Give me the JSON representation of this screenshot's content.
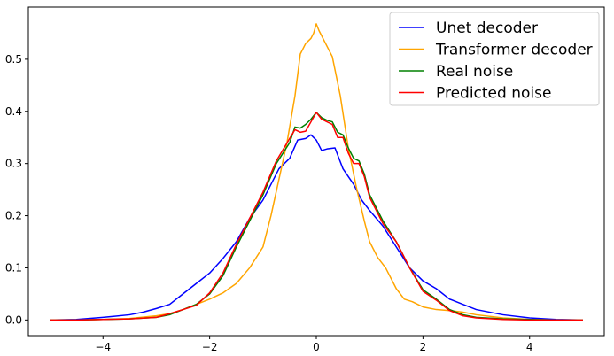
{
  "chart_data": {
    "type": "line",
    "xlim": [
      -5.4,
      5.4
    ],
    "ylim": [
      -0.03,
      0.6
    ],
    "xticks": [
      -4,
      -2,
      0,
      2,
      4
    ],
    "xtick_labels": [
      "−4",
      "−2",
      "0",
      "2",
      "4"
    ],
    "yticks": [
      0.0,
      0.1,
      0.2,
      0.3,
      0.4,
      0.5
    ],
    "ytick_labels": [
      "0.0",
      "0.1",
      "0.2",
      "0.3",
      "0.4",
      "0.5"
    ],
    "grid": false,
    "legend_position": "top-right",
    "series": [
      {
        "name": "Unet decoder",
        "color": "#0000ff",
        "x": [
          -5.0,
          -4.5,
          -4.0,
          -3.5,
          -3.25,
          -3.0,
          -2.75,
          -2.5,
          -2.25,
          -2.0,
          -1.75,
          -1.5,
          -1.25,
          -1.0,
          -0.85,
          -0.7,
          -0.5,
          -0.35,
          -0.2,
          -0.1,
          0.0,
          0.1,
          0.2,
          0.35,
          0.5,
          0.7,
          0.85,
          1.0,
          1.25,
          1.5,
          1.75,
          2.0,
          2.25,
          2.5,
          2.75,
          3.0,
          3.5,
          4.0,
          4.5,
          5.0
        ],
        "y": [
          0.0,
          0.001,
          0.005,
          0.01,
          0.015,
          0.022,
          0.03,
          0.05,
          0.07,
          0.09,
          0.118,
          0.15,
          0.195,
          0.23,
          0.26,
          0.29,
          0.31,
          0.345,
          0.348,
          0.355,
          0.345,
          0.325,
          0.328,
          0.33,
          0.29,
          0.26,
          0.23,
          0.21,
          0.18,
          0.14,
          0.1,
          0.075,
          0.06,
          0.04,
          0.03,
          0.02,
          0.01,
          0.004,
          0.001,
          0.0
        ]
      },
      {
        "name": "Transformer decoder",
        "color": "#ffa500",
        "x": [
          -5.0,
          -4.5,
          -4.0,
          -3.5,
          -3.0,
          -2.75,
          -2.5,
          -2.25,
          -2.0,
          -1.75,
          -1.5,
          -1.25,
          -1.0,
          -0.85,
          -0.7,
          -0.55,
          -0.4,
          -0.3,
          -0.2,
          -0.1,
          -0.05,
          0.0,
          0.05,
          0.1,
          0.2,
          0.3,
          0.45,
          0.6,
          0.75,
          0.9,
          1.0,
          1.15,
          1.3,
          1.5,
          1.65,
          1.8,
          2.0,
          2.25,
          2.5,
          2.75,
          3.0,
          3.5,
          4.0,
          4.5,
          5.0
        ],
        "y": [
          0.0,
          0.0,
          0.001,
          0.003,
          0.008,
          0.012,
          0.02,
          0.03,
          0.04,
          0.052,
          0.07,
          0.1,
          0.14,
          0.2,
          0.27,
          0.34,
          0.43,
          0.51,
          0.53,
          0.54,
          0.55,
          0.568,
          0.555,
          0.545,
          0.525,
          0.505,
          0.43,
          0.33,
          0.255,
          0.19,
          0.15,
          0.12,
          0.1,
          0.06,
          0.04,
          0.035,
          0.025,
          0.02,
          0.018,
          0.015,
          0.01,
          0.004,
          0.001,
          0.0,
          0.0
        ]
      },
      {
        "name": "Real noise",
        "color": "#008000",
        "x": [
          -5.0,
          -4.5,
          -4.0,
          -3.5,
          -3.0,
          -2.75,
          -2.5,
          -2.25,
          -2.0,
          -1.75,
          -1.5,
          -1.25,
          -1.0,
          -0.75,
          -0.5,
          -0.4,
          -0.3,
          -0.2,
          -0.1,
          0.0,
          0.1,
          0.2,
          0.3,
          0.4,
          0.5,
          0.6,
          0.7,
          0.8,
          0.9,
          1.0,
          1.25,
          1.5,
          1.75,
          2.0,
          2.25,
          2.5,
          2.75,
          3.0,
          3.5,
          4.0,
          4.5,
          5.0
        ],
        "y": [
          0.0,
          0.0,
          0.001,
          0.002,
          0.005,
          0.01,
          0.02,
          0.03,
          0.05,
          0.085,
          0.14,
          0.19,
          0.24,
          0.3,
          0.34,
          0.37,
          0.368,
          0.375,
          0.385,
          0.398,
          0.388,
          0.383,
          0.38,
          0.36,
          0.355,
          0.33,
          0.31,
          0.305,
          0.28,
          0.24,
          0.19,
          0.15,
          0.1,
          0.058,
          0.04,
          0.02,
          0.01,
          0.005,
          0.002,
          0.001,
          0.0,
          0.0
        ]
      },
      {
        "name": "Predicted noise",
        "color": "#ff0000",
        "x": [
          -5.0,
          -4.5,
          -4.0,
          -3.5,
          -3.0,
          -2.75,
          -2.5,
          -2.25,
          -2.0,
          -1.75,
          -1.5,
          -1.25,
          -1.0,
          -0.75,
          -0.5,
          -0.4,
          -0.3,
          -0.2,
          -0.1,
          0.0,
          0.1,
          0.2,
          0.3,
          0.4,
          0.5,
          0.6,
          0.7,
          0.8,
          0.9,
          1.0,
          1.25,
          1.5,
          1.75,
          2.0,
          2.25,
          2.5,
          2.75,
          3.0,
          3.5,
          4.0,
          4.5,
          5.0
        ],
        "y": [
          0.0,
          0.0,
          0.001,
          0.002,
          0.005,
          0.012,
          0.02,
          0.028,
          0.052,
          0.09,
          0.145,
          0.195,
          0.245,
          0.305,
          0.348,
          0.365,
          0.36,
          0.362,
          0.38,
          0.398,
          0.385,
          0.38,
          0.375,
          0.35,
          0.35,
          0.32,
          0.3,
          0.3,
          0.275,
          0.235,
          0.185,
          0.15,
          0.1,
          0.055,
          0.038,
          0.018,
          0.008,
          0.004,
          0.001,
          0.0,
          0.0,
          0.0
        ]
      }
    ]
  }
}
